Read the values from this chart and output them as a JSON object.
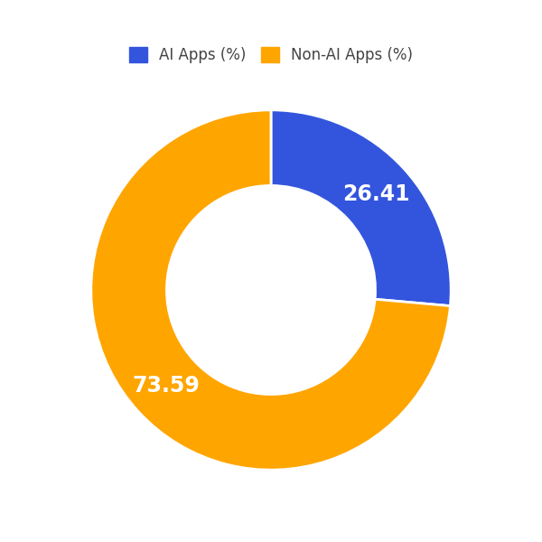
{
  "labels": [
    "AI Apps (%)",
    "Non-AI Apps (%)"
  ],
  "values": [
    26.41,
    73.59
  ],
  "colors": [
    "#3355DD",
    "#FFA500"
  ],
  "text_labels": [
    "26.41",
    "73.59"
  ],
  "text_color": "white",
  "background_color": "#ffffff",
  "wedge_edge_color": "white",
  "wedge_linewidth": 2,
  "donut_width": 0.42,
  "legend_fontsize": 12,
  "label_fontsize": 17,
  "startangle": 90,
  "legend_text_color": "#444444"
}
